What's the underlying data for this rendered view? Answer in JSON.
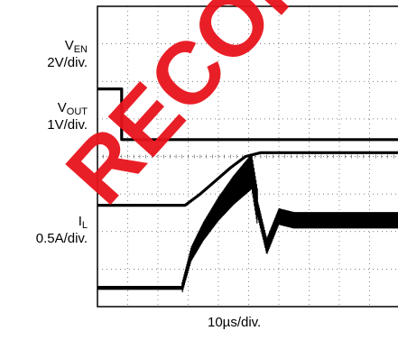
{
  "chart_data": {
    "type": "line",
    "title": "",
    "channels": [
      {
        "name_main": "V",
        "name_sub": "EN",
        "scale": "2V/div."
      },
      {
        "name_main": "V",
        "name_sub": "OUT",
        "scale": "1V/div."
      },
      {
        "name_main": "I",
        "name_sub": "L",
        "scale": "0.5A/div."
      }
    ],
    "timebase": "10µs/div.",
    "grid": {
      "divisions_x": 10,
      "divisions_y": 8,
      "visible": true
    },
    "series": [
      {
        "name": "VEN",
        "trace_color": "#000000",
        "x": [
          0,
          0.8,
          0.8,
          10
        ],
        "y": [
          -1.8,
          -1.8,
          -0.45,
          -0.45
        ]
      },
      {
        "name": "VOUT",
        "trace_color": "#000000",
        "x": [
          0,
          2.9,
          3.4,
          3.9,
          4.4,
          4.9,
          5.4,
          10
        ],
        "y": [
          1.3,
          1.3,
          1.0,
          0.65,
          0.3,
          0.0,
          -0.1,
          -0.1
        ]
      },
      {
        "name": "IL",
        "trace_color": "#000000",
        "x": [
          0,
          2.8,
          3.1,
          3.5,
          4.0,
          4.5,
          5.1,
          5.3,
          5.6,
          6.0,
          6.5,
          10
        ],
        "y": [
          3.5,
          3.5,
          2.6,
          2.0,
          1.4,
          0.9,
          0.4,
          1.4,
          2.4,
          1.6,
          1.7,
          1.7
        ]
      }
    ],
    "watermark_text": "RECOMMENDED FOR",
    "watermark_color": "#e8141c"
  }
}
